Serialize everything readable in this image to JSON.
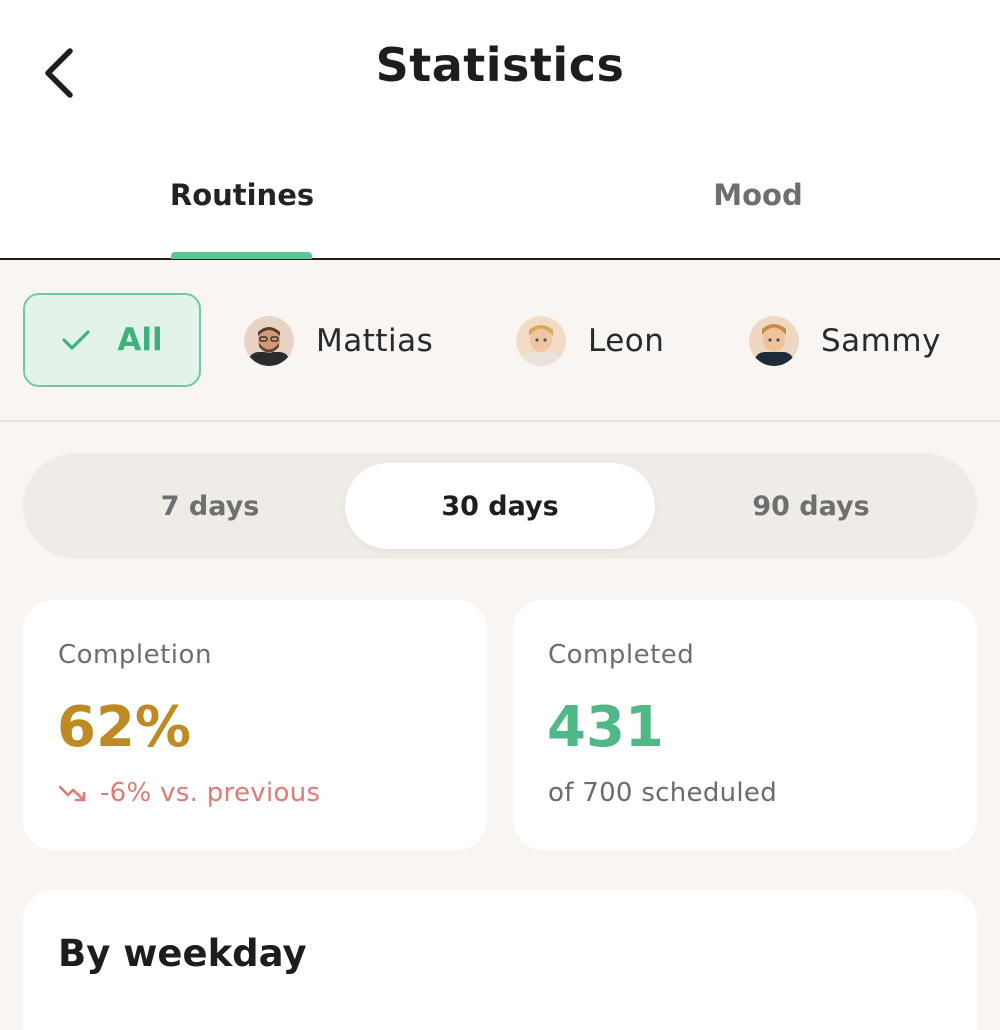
{
  "header": {
    "title": "Statistics",
    "back_icon": "chevron-left-icon"
  },
  "tabs": [
    {
      "label": "Routines",
      "active": true
    },
    {
      "label": "Mood",
      "active": false
    }
  ],
  "filters": {
    "all": {
      "label": "All",
      "selected": true,
      "icon": "check-icon"
    },
    "people": [
      {
        "name": "Mattias"
      },
      {
        "name": "Leon"
      },
      {
        "name": "Sammy"
      }
    ]
  },
  "range": {
    "options": [
      "7 days",
      "30 days",
      "90 days"
    ],
    "selected": "30 days"
  },
  "cards": {
    "completion": {
      "label": "Completion",
      "value": "62%",
      "trend": "-6% vs. previous",
      "trend_icon": "trending-down-icon"
    },
    "completed": {
      "label": "Completed",
      "value": "431",
      "sub": "of 700 scheduled"
    }
  },
  "weekday": {
    "title": "By weekday"
  },
  "colors": {
    "accent_green": "#5ec493",
    "completion_gold": "#be8a23",
    "completed_green": "#50b887",
    "trend_red": "#e07a74"
  }
}
